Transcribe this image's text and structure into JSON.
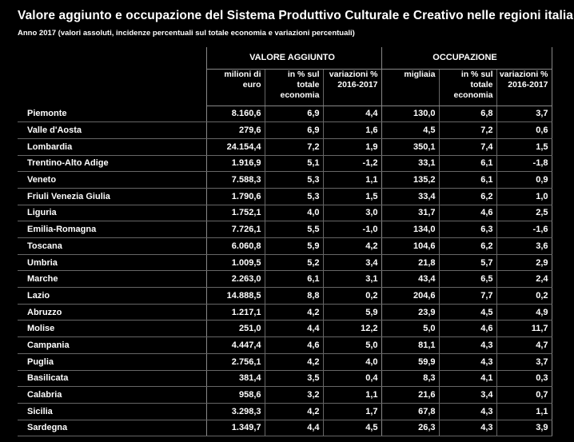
{
  "title": "Valore aggiunto e occupazione del Sistema Produttivo Culturale e Creativo nelle regioni italiane",
  "subtitle": "Anno 2017 (valori assoluti,  incidenze percentuali sul totale economia e variazioni percentuali)",
  "groups": {
    "valore_aggiunto": "VALORE AGGIUNTO",
    "occupazione": "OCCUPAZIONE"
  },
  "subheaders": {
    "va_abs": "milioni di euro",
    "va_pct": "in % sul totale economia",
    "va_var": "variazioni % 2016-2017",
    "occ_abs": "migliaia",
    "occ_pct": "in % sul totale economia",
    "occ_var": "variazioni % 2016-2017"
  },
  "rows": [
    {
      "region": "Piemonte",
      "va_abs": "8.160,6",
      "va_pct": "6,9",
      "va_var": "4,4",
      "occ_abs": "130,0",
      "occ_pct": "6,8",
      "occ_var": "3,7"
    },
    {
      "region": "Valle d'Aosta",
      "va_abs": "279,6",
      "va_pct": "6,9",
      "va_var": "1,6",
      "occ_abs": "4,5",
      "occ_pct": "7,2",
      "occ_var": "0,6"
    },
    {
      "region": "Lombardia",
      "va_abs": "24.154,4",
      "va_pct": "7,2",
      "va_var": "1,9",
      "occ_abs": "350,1",
      "occ_pct": "7,4",
      "occ_var": "1,5"
    },
    {
      "region": "Trentino-Alto Adige",
      "va_abs": "1.916,9",
      "va_pct": "5,1",
      "va_var": "-1,2",
      "occ_abs": "33,1",
      "occ_pct": "6,1",
      "occ_var": "-1,8"
    },
    {
      "region": "Veneto",
      "va_abs": "7.588,3",
      "va_pct": "5,3",
      "va_var": "1,1",
      "occ_abs": "135,2",
      "occ_pct": "6,1",
      "occ_var": "0,9"
    },
    {
      "region": "Friuli Venezia Giulia",
      "va_abs": "1.790,6",
      "va_pct": "5,3",
      "va_var": "1,5",
      "occ_abs": "33,4",
      "occ_pct": "6,2",
      "occ_var": "1,0"
    },
    {
      "region": "Liguria",
      "va_abs": "1.752,1",
      "va_pct": "4,0",
      "va_var": "3,0",
      "occ_abs": "31,7",
      "occ_pct": "4,6",
      "occ_var": "2,5"
    },
    {
      "region": "Emilia-Romagna",
      "va_abs": "7.726,1",
      "va_pct": "5,5",
      "va_var": "-1,0",
      "occ_abs": "134,0",
      "occ_pct": "6,3",
      "occ_var": "-1,6"
    },
    {
      "region": "Toscana",
      "va_abs": "6.060,8",
      "va_pct": "5,9",
      "va_var": "4,2",
      "occ_abs": "104,6",
      "occ_pct": "6,2",
      "occ_var": "3,6"
    },
    {
      "region": "Umbria",
      "va_abs": "1.009,5",
      "va_pct": "5,2",
      "va_var": "3,4",
      "occ_abs": "21,8",
      "occ_pct": "5,7",
      "occ_var": "2,9"
    },
    {
      "region": "Marche",
      "va_abs": "2.263,0",
      "va_pct": "6,1",
      "va_var": "3,1",
      "occ_abs": "43,4",
      "occ_pct": "6,5",
      "occ_var": "2,4"
    },
    {
      "region": "Lazio",
      "va_abs": "14.888,5",
      "va_pct": "8,8",
      "va_var": "0,2",
      "occ_abs": "204,6",
      "occ_pct": "7,7",
      "occ_var": "0,2"
    },
    {
      "region": "Abruzzo",
      "va_abs": "1.217,1",
      "va_pct": "4,2",
      "va_var": "5,9",
      "occ_abs": "23,9",
      "occ_pct": "4,5",
      "occ_var": "4,9"
    },
    {
      "region": "Molise",
      "va_abs": "251,0",
      "va_pct": "4,4",
      "va_var": "12,2",
      "occ_abs": "5,0",
      "occ_pct": "4,6",
      "occ_var": "11,7"
    },
    {
      "region": "Campania",
      "va_abs": "4.447,4",
      "va_pct": "4,6",
      "va_var": "5,0",
      "occ_abs": "81,1",
      "occ_pct": "4,3",
      "occ_var": "4,7"
    },
    {
      "region": "Puglia",
      "va_abs": "2.756,1",
      "va_pct": "4,2",
      "va_var": "4,0",
      "occ_abs": "59,9",
      "occ_pct": "4,3",
      "occ_var": "3,7"
    },
    {
      "region": "Basilicata",
      "va_abs": "381,4",
      "va_pct": "3,5",
      "va_var": "0,4",
      "occ_abs": "8,3",
      "occ_pct": "4,1",
      "occ_var": "0,3"
    },
    {
      "region": "Calabria",
      "va_abs": "958,6",
      "va_pct": "3,2",
      "va_var": "1,1",
      "occ_abs": "21,6",
      "occ_pct": "3,4",
      "occ_var": "0,7"
    },
    {
      "region": "Sicilia",
      "va_abs": "3.298,3",
      "va_pct": "4,2",
      "va_var": "1,7",
      "occ_abs": "67,8",
      "occ_pct": "4,3",
      "occ_var": "1,1"
    },
    {
      "region": "Sardegna",
      "va_abs": "1.349,7",
      "va_pct": "4,4",
      "va_var": "4,5",
      "occ_abs": "26,3",
      "occ_pct": "4,3",
      "occ_var": "3,9"
    }
  ],
  "colors": {
    "background": "#000000",
    "text": "#ffffff",
    "rule": "#888888"
  }
}
